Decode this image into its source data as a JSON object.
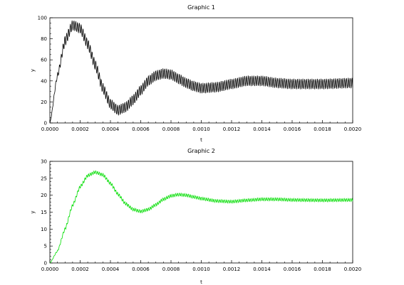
{
  "chart_data": [
    {
      "type": "line",
      "title": "Graphic 1",
      "xlabel": "t",
      "ylabel": "y",
      "xlim": [
        0,
        0.002
      ],
      "ylim": [
        0,
        100
      ],
      "xticks": [
        "0.0000",
        "0.0002",
        "0.0004",
        "0.0006",
        "0.0008",
        "0.0010",
        "0.0012",
        "0.0014",
        "0.0016",
        "0.0018",
        "0.0020"
      ],
      "yticks": [
        "0",
        "20",
        "40",
        "60",
        "80",
        "100"
      ],
      "grid": false,
      "series": [
        {
          "color": "#000000",
          "description": "damped step response with superimposed high-frequency ripple; peak ~95 near t=0.00017, trough ~10 near t=0.00047, peak ~50 near t=0.00078, settles ~37-38",
          "x": [
            0,
            5e-05,
            0.0001,
            0.00015,
            0.0002,
            0.00025,
            0.0003,
            0.00035,
            0.0004,
            0.00045,
            0.0005,
            0.00055,
            0.0006,
            0.00065,
            0.0007,
            0.00075,
            0.0008,
            0.00085,
            0.0009,
            0.00095,
            0.001,
            0.0011,
            0.0012,
            0.0013,
            0.0014,
            0.0015,
            0.0016,
            0.0018,
            0.002
          ],
          "values": [
            0,
            45,
            78,
            93,
            90,
            75,
            55,
            33,
            18,
            12,
            15,
            22,
            31,
            40,
            45,
            47,
            46,
            42,
            38,
            35,
            33,
            34,
            37,
            40,
            40,
            38,
            37,
            37,
            38
          ],
          "ripple_amplitude": 5,
          "ripple_period": 1.2e-05
        }
      ]
    },
    {
      "type": "line",
      "title": "Graphic 2",
      "xlabel": "t",
      "ylabel": "y",
      "xlim": [
        0,
        0.002
      ],
      "ylim": [
        0,
        30
      ],
      "xticks": [
        "0.0000",
        "0.0002",
        "0.0004",
        "0.0006",
        "0.0008",
        "0.0010",
        "0.0012",
        "0.0014",
        "0.0016",
        "0.0018",
        "0.0020"
      ],
      "yticks": [
        "0",
        "5",
        "10",
        "15",
        "20",
        "25",
        "30"
      ],
      "grid": false,
      "series": [
        {
          "color": "#00dd00",
          "description": "smoother damped response with small ripple; peak ~27 near t=0.0003, trough ~15 near t=0.0006, peak ~20 near t=0.0009, settles ~18.5",
          "x": [
            0,
            5e-05,
            0.0001,
            0.00015,
            0.0002,
            0.00025,
            0.0003,
            0.00035,
            0.0004,
            0.00045,
            0.0005,
            0.00055,
            0.0006,
            0.00065,
            0.0007,
            0.00075,
            0.0008,
            0.00085,
            0.0009,
            0.00095,
            0.001,
            0.0011,
            0.0012,
            0.0013,
            0.0014,
            0.0015,
            0.0016,
            0.0018,
            0.002
          ],
          "values": [
            0,
            3.5,
            10,
            17,
            22.5,
            25.8,
            26.8,
            26,
            23.5,
            20.3,
            17.5,
            15.8,
            15.2,
            15.8,
            17.2,
            18.8,
            19.8,
            20.2,
            20,
            19.5,
            19,
            18.3,
            18.1,
            18.5,
            18.8,
            18.8,
            18.6,
            18.5,
            18.6
          ],
          "ripple_amplitude": 0.45,
          "ripple_period": 1.2e-05
        }
      ]
    }
  ]
}
